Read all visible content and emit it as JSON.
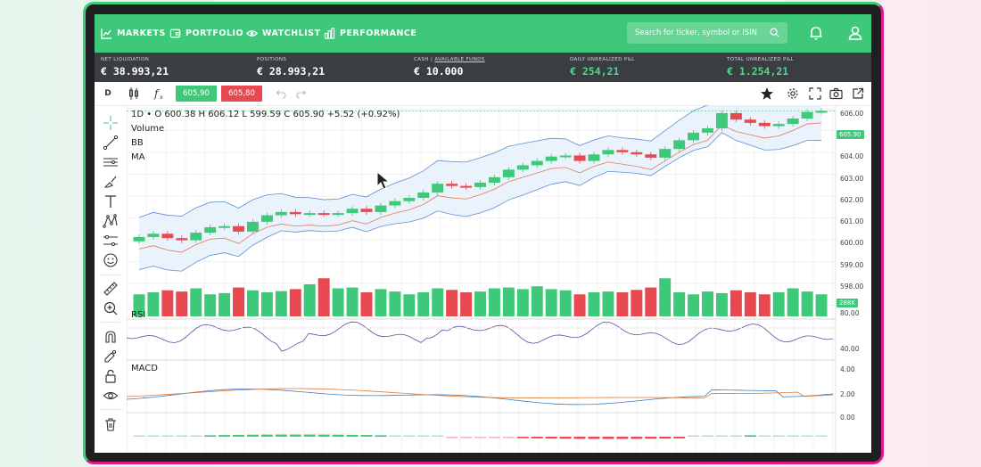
{
  "nav": {
    "markets": "MARKETS",
    "portfolio": "PORTFOLIO",
    "watchlist": "WATCHLIST",
    "performance": "PERFORMANCE",
    "search_placeholder": "Search for ticker, symbol or ISIN"
  },
  "stats": [
    {
      "label": "NET LIQUIDATION",
      "value": "€ 38.993,21"
    },
    {
      "label": "POSITIONS",
      "value": "€ 28.993,21"
    },
    {
      "label_prefix": "CASH | ",
      "label_link": "AVAILABLE FUNDS",
      "value": "€ 10.000"
    },
    {
      "label": "DAILY UNREALIZED P&L",
      "value": "€ 254,21"
    },
    {
      "label": "TOTAL UNREALIZED P&L",
      "value": "€ 1.254,21"
    }
  ],
  "toolbar": {
    "interval": "D",
    "bid": "605,90",
    "ask": "605,80"
  },
  "chart": {
    "ohlc_line": "1D • O 600.38 H 606.12 L 599.59 C 605.90 +5.52 (+0.92%)",
    "indicators": [
      "Volume",
      "BB",
      "MA"
    ],
    "rsi_label": "RSI",
    "macd_label": "MACD",
    "price_axis": [
      "606.00",
      "605.00",
      "604.00",
      "603.00",
      "602.00",
      "601.00",
      "600.00",
      "599.00",
      "598.00"
    ],
    "last_price": "605.90",
    "volume_badge": "288K",
    "rsi_axis": [
      "80.00",
      "40.00"
    ],
    "macd_axis": [
      "4.00",
      "2.00",
      "0.00"
    ]
  },
  "colors": {
    "green": "#3ec879",
    "red": "#e8484f",
    "header": "#3ec879",
    "stats_bg": "#3a3d42"
  },
  "chart_data": {
    "type": "candlestick",
    "candles_close": [
      600.1,
      600.25,
      600.05,
      599.95,
      600.3,
      600.55,
      600.6,
      600.35,
      600.8,
      601.1,
      601.25,
      601.15,
      601.2,
      601.15,
      601.2,
      601.4,
      601.25,
      601.55,
      601.75,
      601.9,
      602.15,
      602.55,
      602.45,
      602.4,
      602.6,
      602.85,
      603.2,
      603.4,
      603.6,
      603.8,
      603.85,
      603.6,
      603.9,
      604.1,
      604.0,
      603.9,
      603.75,
      604.15,
      604.55,
      604.9,
      605.1,
      605.8,
      605.5,
      605.35,
      605.2,
      605.3,
      605.55,
      605.85,
      605.9
    ],
    "volume_colors": "mixed green/red",
    "ylim": [
      598.0,
      606.0
    ]
  }
}
